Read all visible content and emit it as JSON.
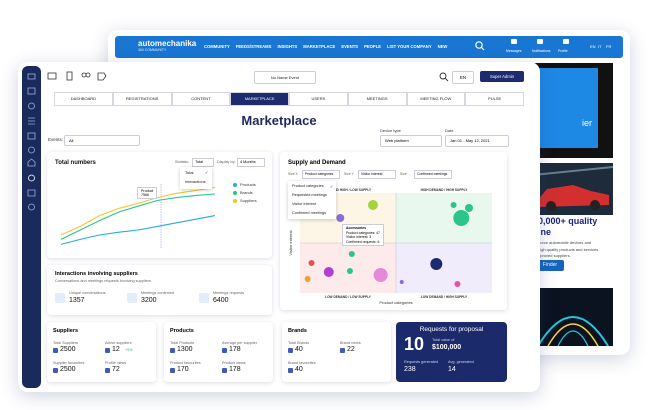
{
  "back_window": {
    "brand": {
      "name": "automechanika",
      "tagline": "360 COMMUNITY"
    },
    "nav": [
      "COMMUNITY",
      "FEEDS/STREAMS",
      "INSIGHTS",
      "MARKETPLACE",
      "EVENTS",
      "PEOPLE",
      "LIST YOUR COMPANY",
      "NEW"
    ],
    "user_menu": [
      "Messages",
      "Notifications",
      "Profile"
    ],
    "languages": [
      "EN",
      "IT",
      "FR"
    ],
    "banner_text": "ier",
    "promo": {
      "headline": "0,000+ quality",
      "headline_2": "ine",
      "body": [
        "ource automobile devices and",
        "high quality products and services",
        "pproved suppliers."
      ],
      "button": "Finder"
    }
  },
  "front_window": {
    "event": "No Name Event",
    "language": "EN",
    "user": "Super Admin",
    "tabs": [
      "DASHBOARD",
      "REGISTRATIONS",
      "CONTENT",
      "MARKETPLACE",
      "USERS",
      "MEETINGS",
      "MEETING FLOW",
      "PULSE"
    ],
    "active_tab": 3,
    "title": "Marketplace",
    "device_type": {
      "label": "Device type",
      "value": "Web platform"
    },
    "date": {
      "label": "Date",
      "value": "Jan 01 - May 12, 2021"
    },
    "events_filter": {
      "label": "Events:",
      "value": "All"
    },
    "total_numbers": {
      "title": "Total numbers",
      "statistic_label": "Statistic:",
      "statistic": "Total",
      "display_label": "Display by:",
      "display": "4 Months",
      "menu": [
        "Total",
        "Interactions"
      ],
      "tooltip": [
        "Product",
        "7566"
      ],
      "chart": {
        "type": "line",
        "ylim": [
          0,
          100
        ],
        "series": [
          {
            "name": "Products",
            "color": "#26a9e0",
            "values": [
              5,
              12,
              18,
              22,
              25,
              30,
              35,
              40,
              45
            ]
          },
          {
            "name": "Brands",
            "color": "#2bc48a",
            "values": [
              12,
              25,
              38,
              50,
              58,
              66,
              70,
              73,
              75
            ]
          },
          {
            "name": "Suppliers",
            "color": "#f4c430",
            "values": [
              18,
              30,
              45,
              55,
              62,
              70,
              76,
              80,
              84
            ]
          }
        ]
      }
    },
    "interactions": {
      "title": "Interactions involving suppliers",
      "subtitle": "Conversations and meetings requests involving suppliers",
      "stats": [
        {
          "label": "Unique conversations",
          "value": 1357
        },
        {
          "label": "Meetings confirmed",
          "value": 3200
        },
        {
          "label": "Meetings requests",
          "value": 6400
        }
      ]
    },
    "supply_demand": {
      "title": "Supply and Demand",
      "filters": [
        {
          "label": "Size X",
          "value": "Product categories"
        },
        {
          "label": "Size Y",
          "value": "Visitor interest"
        },
        {
          "label": "Size",
          "value": "Confirmed meetings"
        }
      ],
      "menu": [
        "Product categories",
        "Requested meetings",
        "Visitor interest",
        "Confirmed meetings"
      ],
      "x_label": "Product categories",
      "y_label": "Visitor interest",
      "quadrants": [
        "DEMAND HIGH / LOW SUPPLY",
        "HIGH DEMAND / HIGH SUPPLY",
        "LOW DEMAND / LOW SUPPLY",
        "LOW DEMAND / HIGH SUPPLY"
      ],
      "tooltip": [
        "Accessories",
        "Product categories: 47",
        "Visitor interest: 3",
        "Confirmed requests: 6"
      ],
      "chart": {
        "type": "scatter",
        "xlim": [
          0,
          100
        ],
        "ylim": [
          0,
          100
        ],
        "points": [
          {
            "x": 84,
            "y": 75,
            "size": 8,
            "color": "#2bc48a"
          },
          {
            "x": 88,
            "y": 85,
            "size": 4,
            "color": "#2bc48a"
          },
          {
            "x": 38,
            "y": 88,
            "size": 5,
            "color": "#a4d43a"
          },
          {
            "x": 80,
            "y": 88,
            "size": 3,
            "color": "#2bc48a"
          },
          {
            "x": 21,
            "y": 75,
            "size": 4,
            "color": "#8e6bd8"
          },
          {
            "x": 71,
            "y": 29,
            "size": 6,
            "color": "#1e2a6e"
          },
          {
            "x": 42,
            "y": 18,
            "size": 7,
            "color": "#e58ad6"
          },
          {
            "x": 15,
            "y": 21,
            "size": 5,
            "color": "#b13fd6"
          },
          {
            "x": 27,
            "y": 39,
            "size": 3,
            "color": "#2bc48a"
          },
          {
            "x": 26,
            "y": 22,
            "size": 3,
            "color": "#2bc48a"
          },
          {
            "x": 4,
            "y": 14,
            "size": 3,
            "color": "#f39c34"
          },
          {
            "x": 82,
            "y": 9,
            "size": 3,
            "color": "#e84fa3"
          },
          {
            "x": 53,
            "y": 11,
            "size": 2,
            "color": "#8e6bd8"
          },
          {
            "x": 6,
            "y": 30,
            "size": 3,
            "color": "#e84f4f"
          }
        ]
      }
    },
    "cards": [
      {
        "title": "Suppliers",
        "stats": [
          {
            "label": "Total Suppliers",
            "value": 2500
          },
          {
            "label": "Active suppliers",
            "value": 12,
            "change": "+5%"
          },
          {
            "label": "Supplier favourites",
            "value": 2500
          },
          {
            "label": "Profile views",
            "value": 72
          }
        ]
      },
      {
        "title": "Products",
        "stats": [
          {
            "label": "Total Products",
            "value": 1300
          },
          {
            "label": "Average per supplier",
            "value": 178
          },
          {
            "label": "Product favourites",
            "value": 170
          },
          {
            "label": "Product views",
            "value": 178
          }
        ]
      },
      {
        "title": "Brands",
        "stats": [
          {
            "label": "Total Brands",
            "value": 40
          },
          {
            "label": "Brand views",
            "value": 22
          },
          {
            "label": "Brand favourites",
            "value": 40
          }
        ]
      }
    ],
    "requests": {
      "title": "Requests for proposal",
      "count": 10,
      "total_label": "Total value of",
      "total": "$100,000",
      "stats": [
        {
          "label": "Requests generated",
          "value": 238
        },
        {
          "label": "Avg. generated",
          "value": 14
        }
      ]
    }
  }
}
